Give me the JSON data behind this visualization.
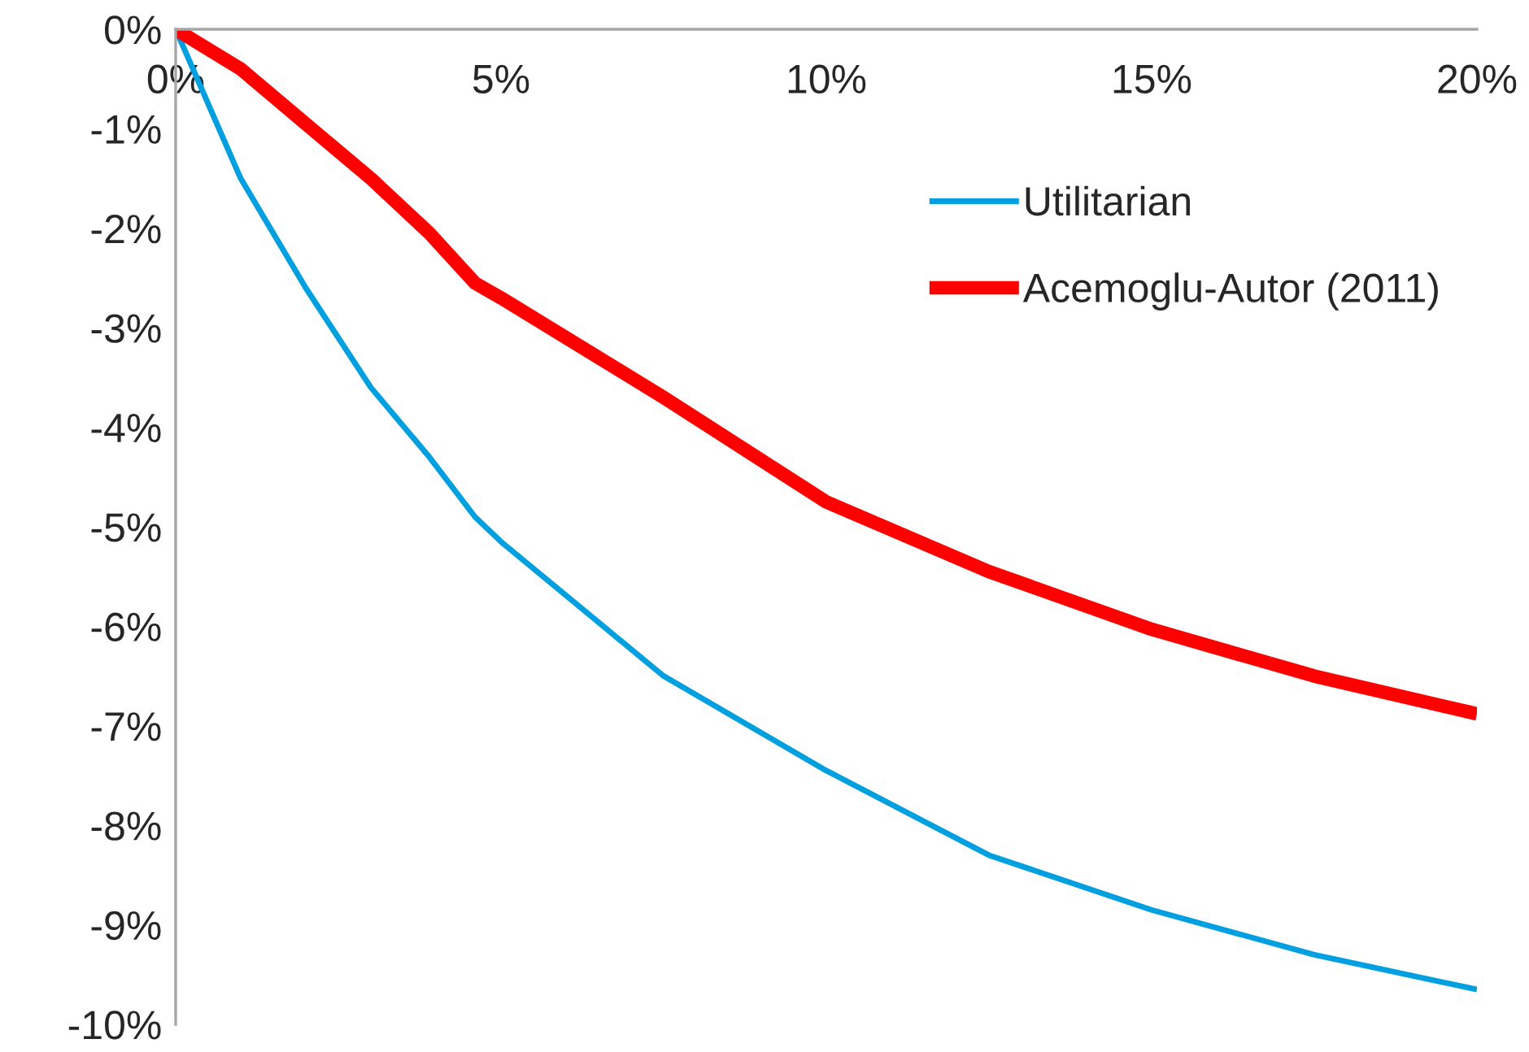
{
  "chart_data": {
    "type": "line",
    "xlim": [
      0,
      20
    ],
    "ylim": [
      -10,
      0
    ],
    "xticks": [
      {
        "value": 0,
        "label": "0%"
      },
      {
        "value": 5,
        "label": "5%"
      },
      {
        "value": 10,
        "label": "10%"
      },
      {
        "value": 15,
        "label": "15%"
      },
      {
        "value": 20,
        "label": "20%"
      }
    ],
    "yticks": [
      {
        "value": 0,
        "label": "0%"
      },
      {
        "value": -1,
        "label": "-1%"
      },
      {
        "value": -2,
        "label": "-2%"
      },
      {
        "value": -3,
        "label": "-3%"
      },
      {
        "value": -4,
        "label": "-4%"
      },
      {
        "value": -5,
        "label": "-5%"
      },
      {
        "value": -6,
        "label": "-6%"
      },
      {
        "value": -7,
        "label": "-7%"
      },
      {
        "value": -8,
        "label": "-8%"
      },
      {
        "value": -9,
        "label": "-9%"
      },
      {
        "value": -10,
        "label": "-10%"
      }
    ],
    "x": [
      0,
      1,
      2,
      3,
      3.9,
      4.6,
      5,
      7.5,
      10,
      12.5,
      15,
      17.5,
      20
    ],
    "series": [
      {
        "name": "Utilitarian",
        "color": "#00a0e0",
        "values": [
          0,
          -1.5,
          -2.6,
          -3.6,
          -4.3,
          -4.9,
          -5.15,
          -6.5,
          -7.45,
          -8.3,
          -8.85,
          -9.3,
          -9.65
        ]
      },
      {
        "name": "Acemoglu-Autor (2011)",
        "color": "#ff0000",
        "values": [
          0,
          -0.4,
          -0.95,
          -1.5,
          -2.05,
          -2.55,
          -2.7,
          -3.7,
          -4.75,
          -5.45,
          -6.03,
          -6.5,
          -6.88
        ]
      }
    ],
    "grid": false,
    "legend": "right",
    "line_style": "solid",
    "marker": "none"
  }
}
